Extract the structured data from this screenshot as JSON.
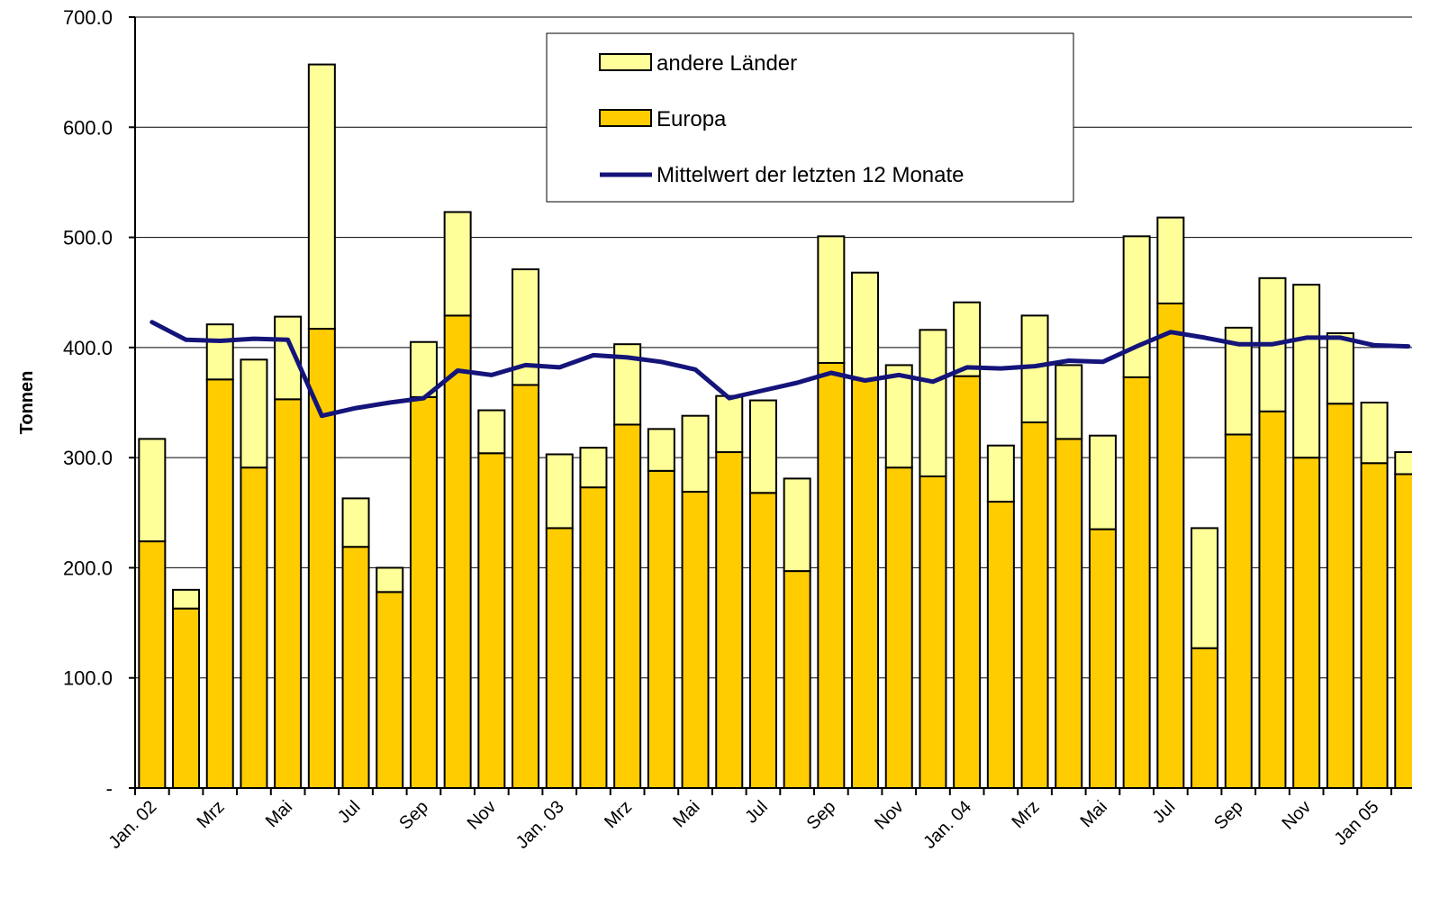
{
  "chart_data": {
    "type": "stacked-bar-line",
    "y_label": "Tonnen",
    "categories": [
      "Jan. 02",
      null,
      "Mrz",
      null,
      "Mai",
      null,
      "Jul",
      null,
      "Sep",
      null,
      "Nov",
      null,
      "Jan. 03",
      null,
      "Mrz",
      null,
      "Mai",
      null,
      "Jul",
      null,
      "Sep",
      null,
      "Nov",
      null,
      "Jan. 04",
      null,
      "Mrz",
      null,
      "Mai",
      null,
      "Jul",
      null,
      "Sep",
      null,
      "Nov",
      null,
      "Jan 05",
      null
    ],
    "series": [
      {
        "name": "Europa",
        "color": "#ffcc00",
        "kind": "bar",
        "values": [
          224,
          163,
          371,
          291,
          353,
          417,
          219,
          178,
          355,
          429,
          304,
          366,
          236,
          273,
          330,
          288,
          269,
          305,
          268,
          197,
          386,
          371,
          291,
          283,
          374,
          260,
          332,
          317,
          235,
          373,
          440,
          127,
          321,
          342,
          300,
          349,
          295,
          285
        ]
      },
      {
        "name": "andere Länder",
        "color": "#ffff99",
        "kind": "bar",
        "values": [
          93,
          17,
          50,
          98,
          75,
          240,
          44,
          22,
          50,
          94,
          39,
          105,
          67,
          36,
          73,
          38,
          69,
          51,
          84,
          84,
          115,
          97,
          93,
          133,
          67,
          51,
          97,
          67,
          85,
          128,
          78,
          109,
          97,
          121,
          157,
          64,
          55,
          20
        ]
      },
      {
        "name": "Mittelwert der letzten 12 Monate",
        "color": "#14147a",
        "kind": "line",
        "values": [
          423,
          407,
          406,
          408,
          407,
          338,
          345,
          350,
          354,
          379,
          375,
          384,
          382,
          393,
          391,
          387,
          380,
          354,
          361,
          368,
          377,
          370,
          375,
          369,
          382,
          381,
          383,
          388,
          387,
          401,
          414,
          409,
          403,
          403,
          409,
          409,
          402,
          401
        ]
      }
    ],
    "ylim": [
      0,
      700
    ],
    "yticks": [
      {
        "value": 0,
        "label": "-"
      },
      {
        "value": 100,
        "label": "100.0"
      },
      {
        "value": 200,
        "label": "200.0"
      },
      {
        "value": 300,
        "label": "300.0"
      },
      {
        "value": 400,
        "label": "400.0"
      },
      {
        "value": 500,
        "label": "500.0"
      },
      {
        "value": 600,
        "label": "600.0"
      },
      {
        "value": 700,
        "label": "700.0"
      }
    ],
    "grid": true
  }
}
